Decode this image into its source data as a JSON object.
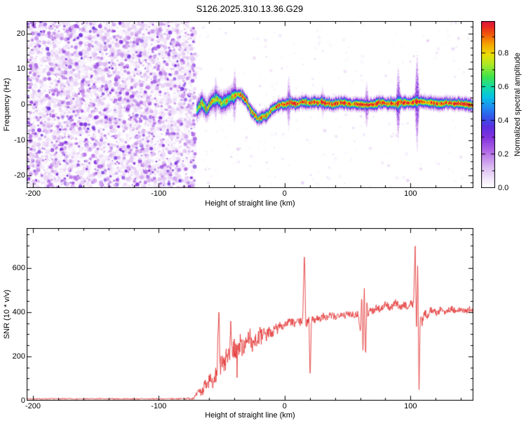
{
  "title": "S126.2025.310.13.36.G29",
  "chart_data": [
    {
      "type": "heatmap",
      "name": "spectrogram",
      "title": "S126.2025.310.13.36.G29",
      "xlabel": "Height of straight line (km)",
      "ylabel": "Frequency (Hz)",
      "xlim": [
        -205,
        150
      ],
      "ylim": [
        -23.5,
        23.5
      ],
      "xticks": [
        "-200",
        "-100",
        "0",
        "100"
      ],
      "xtick_values": [
        -200,
        -100,
        0,
        100
      ],
      "xminor_step": 20,
      "yticks": [
        "20",
        "10",
        "0",
        "-10",
        "-20"
      ],
      "ytick_values": [
        20,
        10,
        0,
        -10,
        -20
      ],
      "yminor_step": 2,
      "colorbar": {
        "label": "Normalized spectral amplitude",
        "tick_labels": [
          "0.0",
          "0.2",
          "0.4",
          "0.6",
          "0.8"
        ],
        "tick_values": [
          0.0,
          0.2,
          0.4,
          0.6,
          0.8
        ],
        "vmax": 0.99,
        "stops": [
          [
            0.0,
            "#ffffff"
          ],
          [
            0.04,
            "#f6eefc"
          ],
          [
            0.12,
            "#ddbcf2"
          ],
          [
            0.22,
            "#b066e6"
          ],
          [
            0.3,
            "#8332dd"
          ],
          [
            0.36,
            "#5c2fe0"
          ],
          [
            0.42,
            "#3355ea"
          ],
          [
            0.48,
            "#1f8df2"
          ],
          [
            0.54,
            "#06c3e4"
          ],
          [
            0.6,
            "#16dba6"
          ],
          [
            0.66,
            "#3fe34c"
          ],
          [
            0.73,
            "#a8e928"
          ],
          [
            0.79,
            "#eadf06"
          ],
          [
            0.85,
            "#f6a800"
          ],
          [
            0.91,
            "#f25c0a"
          ],
          [
            0.96,
            "#e82424"
          ],
          [
            1.0,
            "#d6114e"
          ]
        ]
      },
      "noise_region": {
        "x_range": [
          -205,
          -71
        ],
        "amplitude_range": [
          0.02,
          0.35
        ]
      },
      "signal_band": {
        "x_start": -70,
        "x_end": 150,
        "center_freq_path": [
          [
            -70,
            -1.5
          ],
          [
            -66,
            0.8
          ],
          [
            -62,
            -1.2
          ],
          [
            -58,
            1.2
          ],
          [
            -54,
            2.0
          ],
          [
            -50,
            0.5
          ],
          [
            -46,
            1.2
          ],
          [
            -42,
            2.2
          ],
          [
            -38,
            2.8
          ],
          [
            -34,
            2.6
          ],
          [
            -30,
            0.5
          ],
          [
            -26,
            -2.2
          ],
          [
            -22,
            -3.8
          ],
          [
            -18,
            -3.4
          ],
          [
            -14,
            -2.6
          ],
          [
            -10,
            -1.4
          ],
          [
            -6,
            -0.4
          ],
          [
            -2,
            0.3
          ],
          [
            2,
            0.6
          ],
          [
            8,
            0.4
          ],
          [
            15,
            0.8
          ],
          [
            22,
            0.3
          ],
          [
            30,
            0.6
          ],
          [
            38,
            0.2
          ],
          [
            46,
            0.6
          ],
          [
            54,
            0.3
          ],
          [
            62,
            0.6
          ],
          [
            70,
            0.4
          ],
          [
            78,
            0.7
          ],
          [
            86,
            0.3
          ],
          [
            94,
            0.6
          ],
          [
            102,
            0.4
          ],
          [
            110,
            0.5
          ],
          [
            120,
            0.3
          ],
          [
            130,
            0.4
          ],
          [
            140,
            0.2
          ],
          [
            150,
            0.1
          ]
        ],
        "flares": [
          [
            -55,
            5,
            0.3
          ],
          [
            -40,
            6,
            0.35
          ],
          [
            3,
            6,
            0.32
          ],
          [
            30,
            4,
            0.22
          ],
          [
            65,
            5,
            0.35
          ],
          [
            90,
            8,
            0.4
          ],
          [
            105,
            10,
            0.45
          ]
        ]
      }
    },
    {
      "type": "line",
      "name": "snr",
      "xlabel": "Height of straight line (km)",
      "ylabel": "SNR (10 * v/v)",
      "xlim": [
        -205,
        150
      ],
      "ylim": [
        0,
        780
      ],
      "xticks": [
        "-200",
        "-100",
        "0",
        "100"
      ],
      "xtick_values": [
        -200,
        -100,
        0,
        100
      ],
      "xminor_step": 20,
      "yticks": [
        "0",
        "200",
        "400",
        "600"
      ],
      "ytick_values": [
        0,
        200,
        400,
        600
      ],
      "yminor_step": 50,
      "line_color": "#e43a3a",
      "points": [
        [
          -205,
          8
        ],
        [
          -160,
          8
        ],
        [
          -120,
          8
        ],
        [
          -90,
          8
        ],
        [
          -80,
          9
        ],
        [
          -75,
          10
        ],
        [
          -72,
          14
        ],
        [
          -70,
          28
        ],
        [
          -68,
          45
        ],
        [
          -66,
          35
        ],
        [
          -64,
          75
        ],
        [
          -62,
          60
        ],
        [
          -60,
          95
        ],
        [
          -58,
          75
        ],
        [
          -56,
          115
        ],
        [
          -54,
          135
        ],
        [
          -52.5,
          430
        ],
        [
          -51.5,
          145
        ],
        [
          -50,
          185
        ],
        [
          -48,
          155
        ],
        [
          -46,
          215
        ],
        [
          -44,
          175
        ],
        [
          -43,
          390
        ],
        [
          -42,
          205
        ],
        [
          -40,
          245
        ],
        [
          -38,
          205
        ],
        [
          -36,
          265
        ],
        [
          -34,
          235
        ],
        [
          -32,
          258
        ],
        [
          -30,
          242
        ],
        [
          -28,
          292
        ],
        [
          -26,
          258
        ],
        [
          -24,
          282
        ],
        [
          -22,
          272
        ],
        [
          -20,
          296
        ],
        [
          -18,
          282
        ],
        [
          -16,
          306
        ],
        [
          -14,
          292
        ],
        [
          -12,
          322
        ],
        [
          -10,
          302
        ],
        [
          -8,
          332
        ],
        [
          -6,
          322
        ],
        [
          -4,
          342
        ],
        [
          -2,
          332
        ],
        [
          0,
          346
        ],
        [
          2,
          352
        ],
        [
          5,
          356
        ],
        [
          8,
          346
        ],
        [
          10,
          362
        ],
        [
          12,
          352
        ],
        [
          14,
          366
        ],
        [
          15.5,
          668
        ],
        [
          16.5,
          342
        ],
        [
          19,
          372
        ],
        [
          20,
          95
        ],
        [
          21,
          372
        ],
        [
          23,
          362
        ],
        [
          25,
          376
        ],
        [
          28,
          366
        ],
        [
          30,
          382
        ],
        [
          33,
          372
        ],
        [
          36,
          386
        ],
        [
          40,
          376
        ],
        [
          44,
          396
        ],
        [
          48,
          386
        ],
        [
          52,
          396
        ],
        [
          56,
          386
        ],
        [
          58,
          396
        ],
        [
          60,
          312
        ],
        [
          61,
          482
        ],
        [
          62,
          205
        ],
        [
          63,
          522
        ],
        [
          64,
          182
        ],
        [
          65,
          442
        ],
        [
          66,
          382
        ],
        [
          68,
          422
        ],
        [
          70,
          402
        ],
        [
          73,
          422
        ],
        [
          76,
          412
        ],
        [
          80,
          436
        ],
        [
          84,
          416
        ],
        [
          88,
          442
        ],
        [
          92,
          422
        ],
        [
          95,
          436
        ],
        [
          98,
          422
        ],
        [
          100,
          442
        ],
        [
          102,
          432
        ],
        [
          103.5,
          692
        ],
        [
          104.5,
          302
        ],
        [
          105.5,
          622
        ],
        [
          106.5,
          42
        ],
        [
          107.5,
          382
        ],
        [
          109,
          352
        ],
        [
          111,
          402
        ],
        [
          113,
          382
        ],
        [
          116,
          412
        ],
        [
          120,
          396
        ],
        [
          124,
          412
        ],
        [
          128,
          402
        ],
        [
          132,
          416
        ],
        [
          136,
          402
        ],
        [
          140,
          412
        ],
        [
          144,
          402
        ],
        [
          148,
          416
        ],
        [
          150,
          406
        ]
      ],
      "noise_envelope": [
        [
          -205,
          3
        ],
        [
          -80,
          3
        ],
        [
          -72,
          8
        ],
        [
          -64,
          25
        ],
        [
          -56,
          40
        ],
        [
          -45,
          45
        ],
        [
          -20,
          40
        ],
        [
          -10,
          25
        ],
        [
          0,
          18
        ],
        [
          150,
          15
        ]
      ]
    }
  ]
}
